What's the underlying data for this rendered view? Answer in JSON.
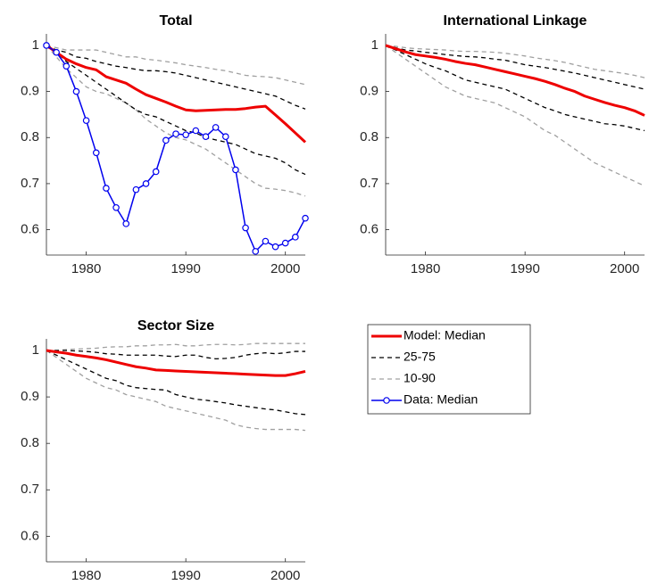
{
  "chart_data": [
    {
      "type": "line",
      "title": "Total",
      "x": [
        1976,
        1977,
        1978,
        1979,
        1980,
        1981,
        1982,
        1983,
        1984,
        1985,
        1986,
        1987,
        1988,
        1989,
        1990,
        1991,
        1992,
        1993,
        1994,
        1995,
        1996,
        1997,
        1998,
        1999,
        2000,
        2001,
        2002
      ],
      "xlim": [
        1976,
        2002
      ],
      "xticks": [
        1980,
        1990,
        2000
      ],
      "ylim": [
        0.545,
        1.025
      ],
      "yticks": [
        0.6,
        0.7,
        0.8,
        0.9,
        1
      ],
      "series": [
        {
          "name": "10-90",
          "color": "#a0a0a0",
          "style": "dashed",
          "lower": [
            1.0,
            0.975,
            0.95,
            0.93,
            0.91,
            0.9,
            0.895,
            0.885,
            0.875,
            0.86,
            0.84,
            0.825,
            0.81,
            0.8,
            0.795,
            0.785,
            0.775,
            0.76,
            0.745,
            0.73,
            0.715,
            0.7,
            0.69,
            0.688,
            0.685,
            0.68,
            0.673
          ],
          "upper": [
            1.0,
            0.995,
            0.99,
            0.99,
            0.99,
            0.99,
            0.985,
            0.98,
            0.975,
            0.975,
            0.97,
            0.968,
            0.965,
            0.962,
            0.958,
            0.955,
            0.952,
            0.948,
            0.945,
            0.94,
            0.935,
            0.933,
            0.932,
            0.93,
            0.925,
            0.92,
            0.915
          ]
        },
        {
          "name": "25-75",
          "color": "#000000",
          "style": "dashed",
          "lower": [
            1.0,
            0.985,
            0.965,
            0.95,
            0.935,
            0.92,
            0.905,
            0.89,
            0.875,
            0.86,
            0.85,
            0.845,
            0.835,
            0.825,
            0.815,
            0.81,
            0.8,
            0.795,
            0.79,
            0.785,
            0.775,
            0.765,
            0.76,
            0.755,
            0.745,
            0.73,
            0.72
          ],
          "upper": [
            1.0,
            0.99,
            0.985,
            0.975,
            0.972,
            0.965,
            0.96,
            0.955,
            0.952,
            0.948,
            0.945,
            0.945,
            0.943,
            0.94,
            0.935,
            0.93,
            0.925,
            0.92,
            0.915,
            0.91,
            0.905,
            0.9,
            0.895,
            0.89,
            0.88,
            0.87,
            0.862
          ]
        },
        {
          "name": "Model: Median",
          "color": "#ee0000",
          "style": "solid",
          "values": [
            1.0,
            0.985,
            0.97,
            0.96,
            0.952,
            0.947,
            0.932,
            0.925,
            0.918,
            0.905,
            0.893,
            0.885,
            0.877,
            0.868,
            0.86,
            0.858,
            0.859,
            0.86,
            0.861,
            0.861,
            0.863,
            0.866,
            0.868,
            0.849,
            0.83,
            0.81,
            0.79
          ]
        },
        {
          "name": "Data: Median",
          "color": "#0000ee",
          "style": "solid",
          "marker": "circle",
          "values": [
            1.0,
            0.985,
            0.955,
            0.9,
            0.837,
            0.767,
            0.69,
            0.648,
            0.613,
            0.687,
            0.7,
            0.726,
            0.794,
            0.808,
            0.806,
            0.815,
            0.802,
            0.822,
            0.802,
            0.73,
            0.604,
            0.553,
            0.575,
            0.563,
            0.571,
            0.584,
            0.625
          ]
        }
      ]
    },
    {
      "type": "line",
      "title": "International Linkage",
      "x": [
        1976,
        1977,
        1978,
        1979,
        1980,
        1981,
        1982,
        1983,
        1984,
        1985,
        1986,
        1987,
        1988,
        1989,
        1990,
        1991,
        1992,
        1993,
        1994,
        1995,
        1996,
        1997,
        1998,
        1999,
        2000,
        2001,
        2002
      ],
      "xlim": [
        1976,
        2002
      ],
      "xticks": [
        1980,
        1990,
        2000
      ],
      "ylim": [
        0.545,
        1.025
      ],
      "yticks": [
        0.6,
        0.7,
        0.8,
        0.9,
        1
      ],
      "series": [
        {
          "color": "#a0a0a0",
          "style": "dashed",
          "lower": [
            1.0,
            0.985,
            0.97,
            0.955,
            0.94,
            0.925,
            0.91,
            0.9,
            0.89,
            0.885,
            0.88,
            0.875,
            0.865,
            0.855,
            0.845,
            0.83,
            0.815,
            0.805,
            0.79,
            0.775,
            0.76,
            0.745,
            0.735,
            0.725,
            0.715,
            0.705,
            0.695
          ],
          "upper": [
            1.0,
            0.998,
            0.995,
            0.993,
            0.992,
            0.991,
            0.99,
            0.988,
            0.987,
            0.987,
            0.986,
            0.985,
            0.983,
            0.98,
            0.977,
            0.973,
            0.97,
            0.967,
            0.963,
            0.958,
            0.953,
            0.948,
            0.945,
            0.942,
            0.939,
            0.935,
            0.93
          ]
        },
        {
          "color": "#000000",
          "style": "dashed",
          "lower": [
            1.0,
            0.99,
            0.98,
            0.97,
            0.96,
            0.952,
            0.945,
            0.935,
            0.925,
            0.92,
            0.915,
            0.91,
            0.905,
            0.895,
            0.885,
            0.875,
            0.865,
            0.858,
            0.85,
            0.845,
            0.84,
            0.835,
            0.83,
            0.828,
            0.825,
            0.82,
            0.815
          ],
          "upper": [
            1.0,
            0.995,
            0.99,
            0.988,
            0.985,
            0.983,
            0.98,
            0.978,
            0.976,
            0.975,
            0.973,
            0.97,
            0.968,
            0.963,
            0.958,
            0.955,
            0.952,
            0.948,
            0.944,
            0.94,
            0.935,
            0.93,
            0.925,
            0.92,
            0.915,
            0.91,
            0.905
          ]
        },
        {
          "color": "#ee0000",
          "style": "solid",
          "values": [
            1.0,
            0.993,
            0.986,
            0.98,
            0.977,
            0.974,
            0.97,
            0.965,
            0.961,
            0.958,
            0.953,
            0.948,
            0.943,
            0.938,
            0.933,
            0.928,
            0.922,
            0.915,
            0.907,
            0.9,
            0.89,
            0.883,
            0.876,
            0.87,
            0.865,
            0.858,
            0.848
          ]
        }
      ]
    },
    {
      "type": "line",
      "title": "Sector Size",
      "x": [
        1976,
        1977,
        1978,
        1979,
        1980,
        1981,
        1982,
        1983,
        1984,
        1985,
        1986,
        1987,
        1988,
        1989,
        1990,
        1991,
        1992,
        1993,
        1994,
        1995,
        1996,
        1997,
        1998,
        1999,
        2000,
        2001,
        2002
      ],
      "xlim": [
        1976,
        2002
      ],
      "xticks": [
        1980,
        1990,
        2000
      ],
      "ylim": [
        0.545,
        1.025
      ],
      "yticks": [
        0.6,
        0.7,
        0.8,
        0.9,
        1
      ],
      "series": [
        {
          "color": "#a0a0a0",
          "style": "dashed",
          "lower": [
            1.0,
            0.985,
            0.97,
            0.955,
            0.94,
            0.93,
            0.92,
            0.915,
            0.905,
            0.9,
            0.895,
            0.89,
            0.88,
            0.875,
            0.87,
            0.865,
            0.86,
            0.855,
            0.85,
            0.84,
            0.835,
            0.832,
            0.83,
            0.83,
            0.83,
            0.83,
            0.828
          ],
          "upper": [
            1.0,
            1.0,
            1.002,
            1.003,
            1.004,
            1.005,
            1.007,
            1.008,
            1.008,
            1.01,
            1.01,
            1.012,
            1.012,
            1.013,
            1.01,
            1.01,
            1.012,
            1.013,
            1.013,
            1.012,
            1.013,
            1.015,
            1.015,
            1.015,
            1.015,
            1.015,
            1.015
          ]
        },
        {
          "color": "#000000",
          "style": "dashed",
          "lower": [
            1.0,
            0.99,
            0.98,
            0.97,
            0.96,
            0.95,
            0.94,
            0.935,
            0.925,
            0.92,
            0.918,
            0.916,
            0.915,
            0.905,
            0.9,
            0.895,
            0.893,
            0.89,
            0.887,
            0.883,
            0.88,
            0.877,
            0.874,
            0.872,
            0.868,
            0.864,
            0.862
          ],
          "upper": [
            1.0,
            1.0,
            1.0,
            0.999,
            0.998,
            0.996,
            0.993,
            0.992,
            0.99,
            0.99,
            0.99,
            0.99,
            0.988,
            0.987,
            0.99,
            0.99,
            0.985,
            0.982,
            0.983,
            0.985,
            0.99,
            0.993,
            0.995,
            0.993,
            0.995,
            0.998,
            0.998
          ]
        },
        {
          "color": "#ee0000",
          "style": "solid",
          "values": [
            1.0,
            0.997,
            0.994,
            0.99,
            0.987,
            0.984,
            0.98,
            0.975,
            0.97,
            0.965,
            0.962,
            0.958,
            0.957,
            0.956,
            0.955,
            0.954,
            0.953,
            0.952,
            0.951,
            0.95,
            0.949,
            0.948,
            0.947,
            0.946,
            0.946,
            0.95,
            0.955
          ]
        }
      ]
    }
  ]
}
